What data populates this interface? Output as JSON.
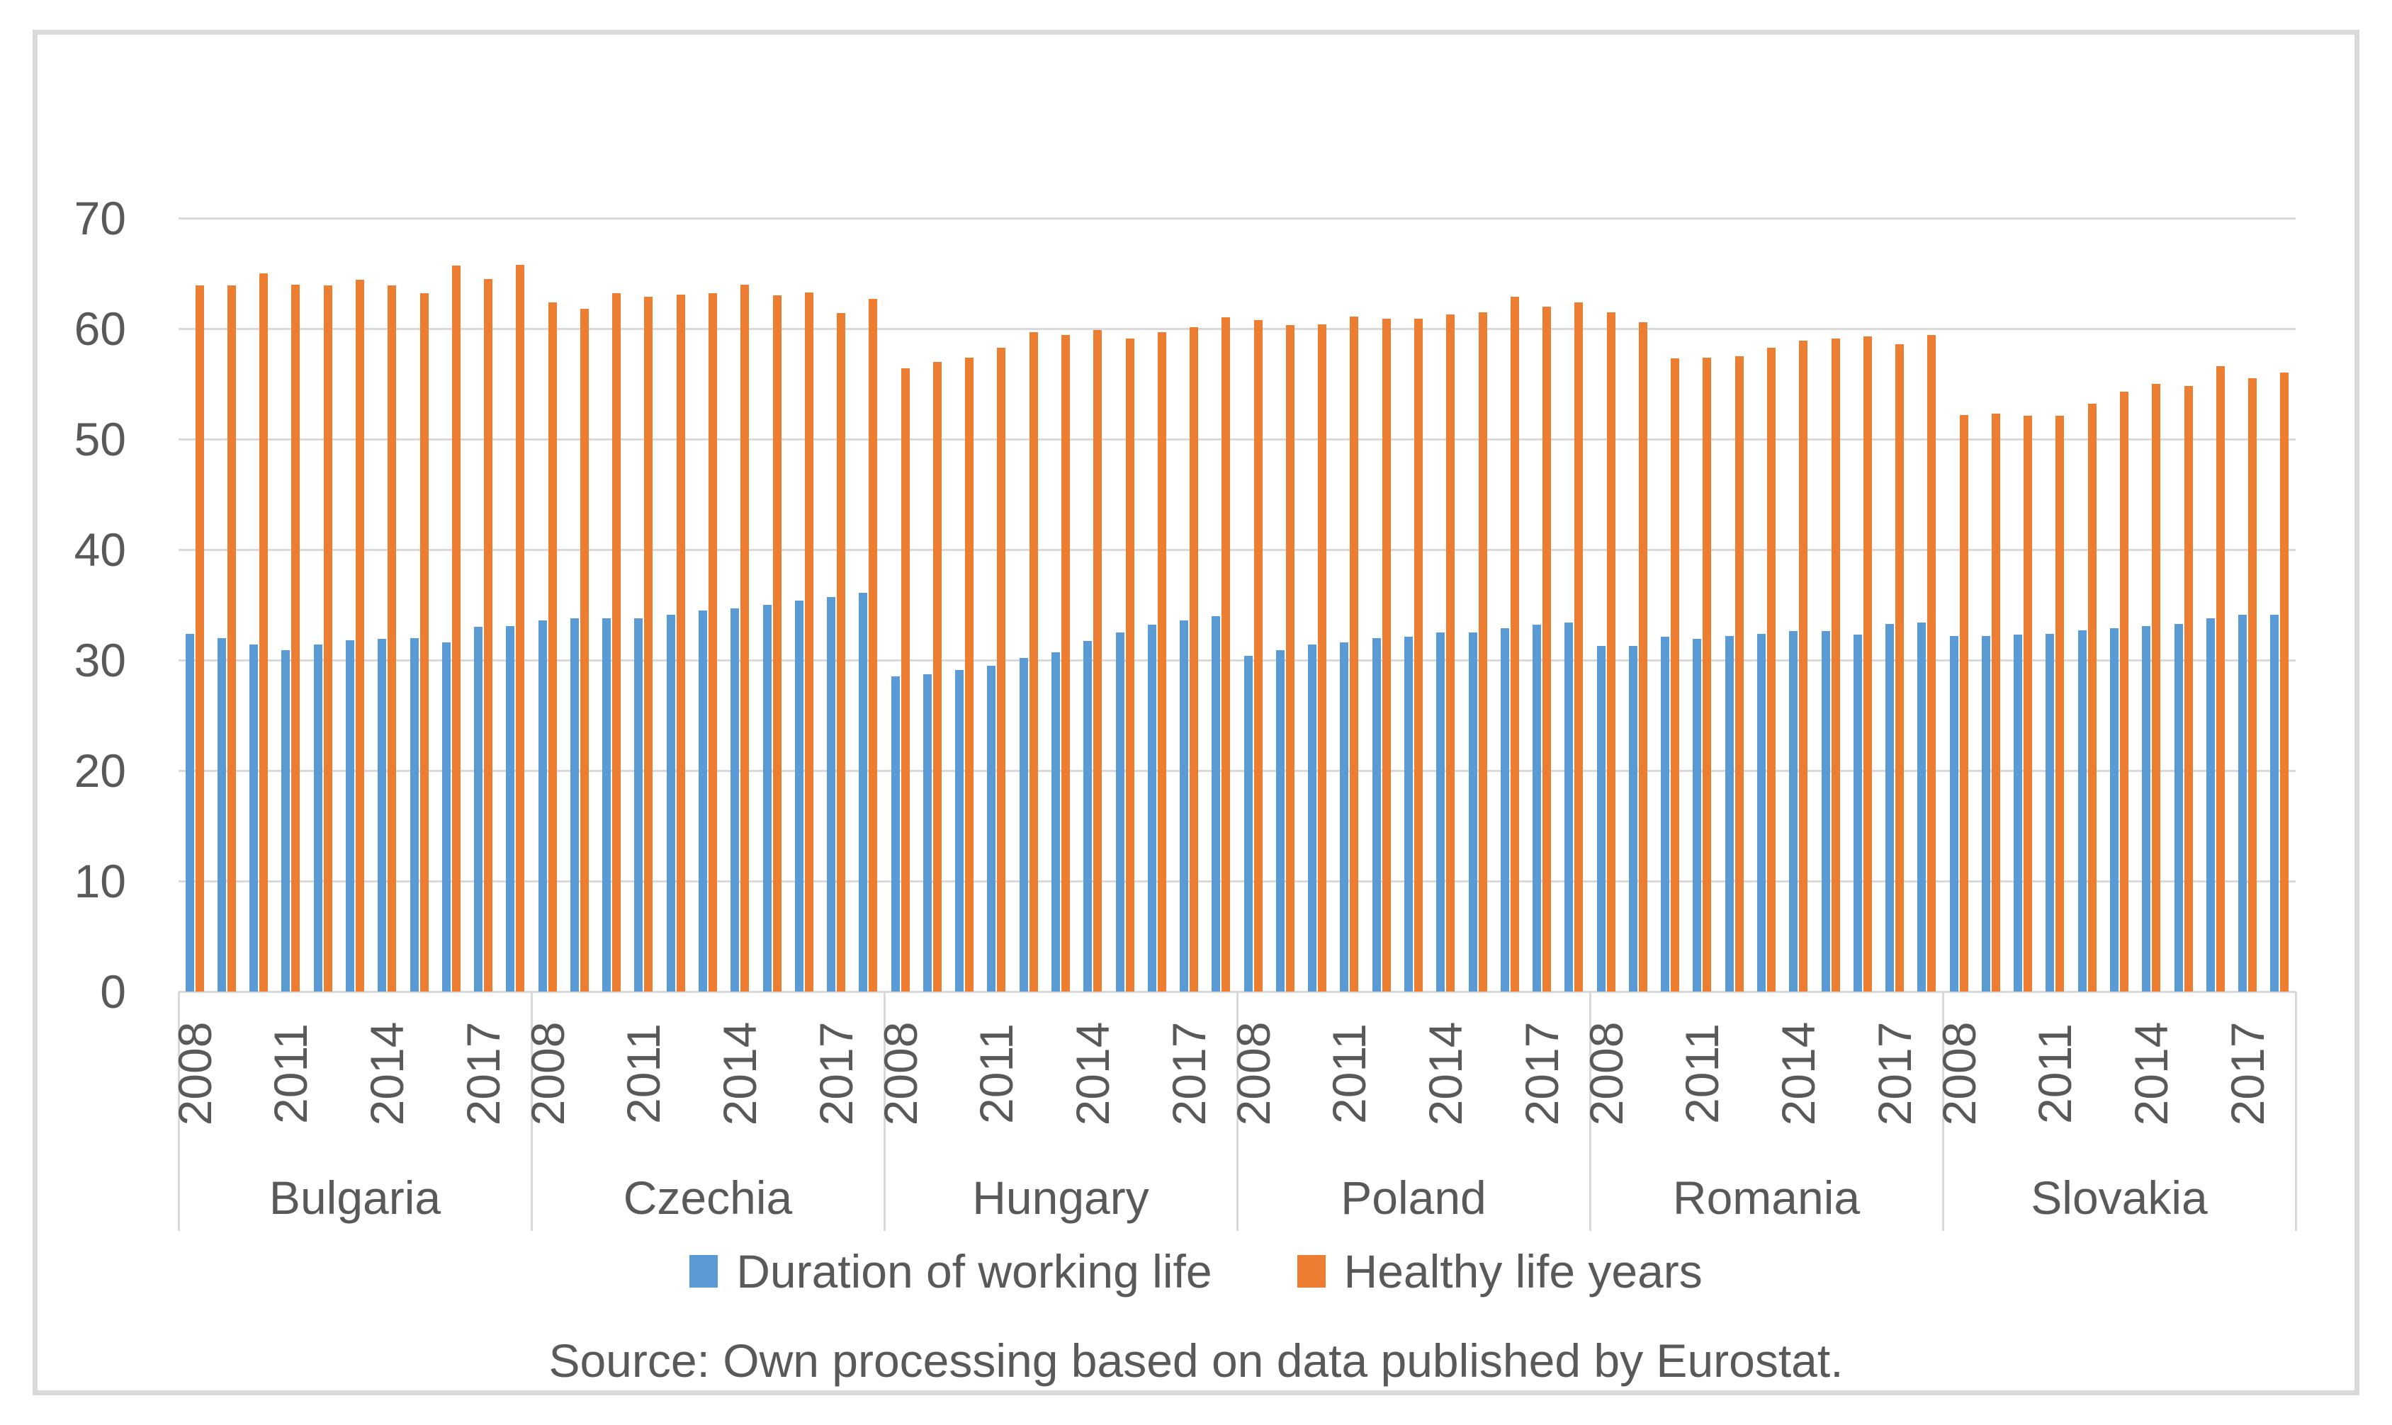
{
  "source_note": "Source: Own processing based on data published by Eurostat.",
  "colors": {
    "series_blue": "#5B9BD5",
    "series_orange": "#ED7D31",
    "axis_text": "#595959",
    "gridline": "#D9D9D9",
    "figure_border": "#D9D9D9"
  },
  "chart_data": {
    "type": "bar",
    "title": "",
    "xlabel": "",
    "ylabel": "",
    "ylim": [
      0,
      70
    ],
    "ytick_step": 10,
    "ytick_labels": [
      "0",
      "10",
      "20",
      "30",
      "40",
      "50",
      "60",
      "70"
    ],
    "grid": true,
    "legend_position": "bottom",
    "years": [
      2008,
      2009,
      2010,
      2011,
      2012,
      2013,
      2014,
      2015,
      2016,
      2017,
      2018
    ],
    "year_tick_slots": [
      0,
      3,
      6,
      9
    ],
    "year_tick_labels": [
      "2008",
      "2011",
      "2014",
      "2017"
    ],
    "countries": [
      "Bulgaria",
      "Czechia",
      "Hungary",
      "Poland",
      "Romania",
      "Slovakia"
    ],
    "series": [
      {
        "name": "Duration of working life",
        "color": "#5B9BD5",
        "values": {
          "Bulgaria": [
            32.4,
            32.0,
            31.4,
            30.9,
            31.4,
            31.8,
            31.9,
            32.0,
            31.6,
            33.0,
            33.1
          ],
          "Czechia": [
            33.6,
            33.8,
            33.8,
            33.8,
            34.1,
            34.5,
            34.7,
            35.0,
            35.4,
            35.7,
            36.1
          ],
          "Hungary": [
            28.5,
            28.7,
            29.1,
            29.5,
            30.2,
            30.7,
            31.7,
            32.5,
            33.2,
            33.6,
            34.0
          ],
          "Poland": [
            30.4,
            30.9,
            31.4,
            31.6,
            32.0,
            32.1,
            32.5,
            32.5,
            32.9,
            33.2,
            33.4
          ],
          "Romania": [
            31.3,
            31.3,
            32.1,
            31.9,
            32.2,
            32.4,
            32.6,
            32.6,
            32.3,
            33.3,
            33.4
          ],
          "Slovakia": [
            32.2,
            32.2,
            32.3,
            32.4,
            32.7,
            32.9,
            33.1,
            33.3,
            33.8,
            34.1,
            34.1
          ]
        }
      },
      {
        "name": "Healthy life years",
        "color": "#ED7D31",
        "values": {
          "Bulgaria": [
            63.9,
            63.9,
            65.0,
            64.0,
            63.9,
            64.4,
            63.9,
            63.2,
            65.7,
            64.5,
            65.8
          ],
          "Czechia": [
            62.4,
            61.8,
            63.2,
            62.9,
            63.1,
            63.2,
            64.0,
            63.0,
            63.3,
            61.4,
            62.7
          ],
          "Hungary": [
            56.4,
            57.0,
            57.4,
            58.3,
            59.7,
            59.4,
            59.9,
            59.1,
            59.7,
            60.1,
            61.0
          ],
          "Poland": [
            60.8,
            60.3,
            60.4,
            61.1,
            60.9,
            60.9,
            61.3,
            61.5,
            62.9,
            62.0,
            62.4
          ],
          "Romania": [
            61.5,
            60.6,
            57.3,
            57.4,
            57.5,
            58.3,
            58.9,
            59.1,
            59.3,
            58.6,
            59.4
          ],
          "Slovakia": [
            52.2,
            52.3,
            52.1,
            52.1,
            53.2,
            54.3,
            55.0,
            54.8,
            56.6,
            55.5,
            56.0
          ]
        }
      }
    ]
  }
}
